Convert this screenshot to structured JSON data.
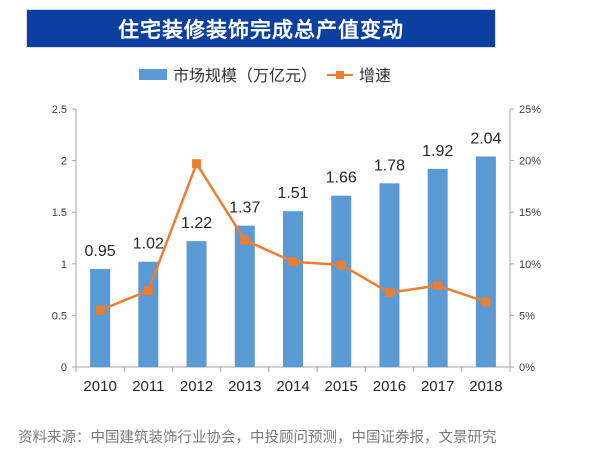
{
  "chart_data": {
    "type": "bar+line",
    "title": "住宅装修装饰完成总产值变动",
    "categories": [
      "2010",
      "2011",
      "2012",
      "2013",
      "2014",
      "2015",
      "2016",
      "2017",
      "2018"
    ],
    "series": [
      {
        "name": "市场规模（万亿元）",
        "type": "bar",
        "axis": "left",
        "color": "#5b9bd5",
        "values": [
          0.95,
          1.02,
          1.22,
          1.37,
          1.51,
          1.66,
          1.78,
          1.92,
          2.04
        ],
        "data_labels": [
          "0.95",
          "1.02",
          "1.22",
          "1.37",
          "1.51",
          "1.66",
          "1.78",
          "1.92",
          "2.04"
        ]
      },
      {
        "name": "增速",
        "type": "line",
        "axis": "right",
        "color": "#ed7d31",
        "values": [
          5.5,
          7.4,
          19.7,
          12.3,
          10.2,
          9.9,
          7.2,
          7.9,
          6.3
        ]
      }
    ],
    "left_axis": {
      "ylim": [
        0,
        2.5
      ],
      "ticks": [
        "0",
        "0.5",
        "1",
        "1.5",
        "2",
        "2.5"
      ]
    },
    "right_axis": {
      "ylim": [
        0,
        25
      ],
      "ticks": [
        "0%",
        "5%",
        "10%",
        "15%",
        "20%",
        "25%"
      ]
    },
    "grid": false,
    "legend_position": "top-center"
  },
  "legend": {
    "bar_label": "市场规模（万亿元）",
    "line_label": "增速"
  },
  "source": "资料来源：中国建筑装饰行业协会，中投顾问预测，中国证券报，文景研究"
}
